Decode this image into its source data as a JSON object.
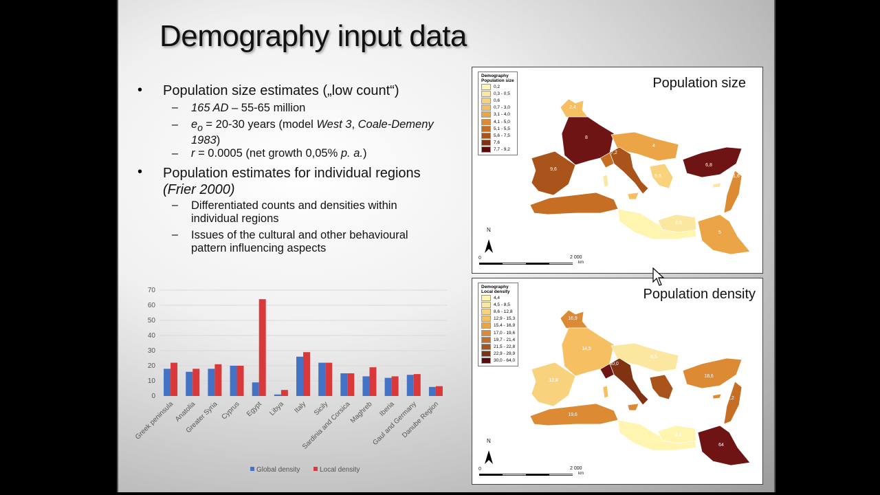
{
  "title": "Demography input data",
  "bullets": [
    {
      "text": "Population size estimates („low count“)",
      "subs": [
        {
          "html": "<i>165 AD</i> – 55-65 million"
        },
        {
          "html": "<i>e<sub>o</sub></i> = 20-30 years (model <i>West 3</i>, <i>Coale-Demeny</i><br><i>1983</i>)"
        },
        {
          "html": "<i>r</i> = 0.0005 (net growth 0,05% <i>p. a.</i>)"
        }
      ]
    },
    {
      "text": "Population estimates for individual regions",
      "text2": "(Frier 2000)",
      "subs": [
        {
          "html": "Differentiated counts and densities within<br>individual regions"
        },
        {
          "html": "Issues of the cultural and other behavioural<br>pattern influencing aspects"
        }
      ]
    }
  ],
  "map1": {
    "title": "Population size",
    "legend_title": "Demography",
    "legend_sub": "Population size",
    "classes": [
      "0,2",
      "0,3 - 0,5",
      "0,6",
      "0,7 - 3,0",
      "3,1 - 4,0",
      "4,1 - 5,0",
      "5,1 - 5,5",
      "5,6 - 7,5",
      "7,6",
      "7,7 - 9,2"
    ],
    "labels": [
      "2,4",
      "8",
      "7,2",
      "4",
      "6,8",
      "9,6",
      "0,2",
      "1,6",
      "5,5",
      "0,6",
      "5"
    ],
    "north": "N",
    "scale_start": "0",
    "scale_end": "2 000",
    "scale_unit": "km"
  },
  "map2": {
    "title": "Population density",
    "legend_title": "Demography",
    "legend_sub": "Local density",
    "classes": [
      "4,4",
      "4,5 - 8,5",
      "8,6 - 12,8",
      "12,9 - 15,3",
      "15,4 - 16,9",
      "17,0 - 19,6",
      "19,7 - 21,4",
      "21,5 - 22,8",
      "22,9 - 29,9",
      "30,0 - 64,0"
    ],
    "labels": [
      "16,9",
      "14,5",
      "12,8",
      "6,5",
      "30,0",
      "18,6",
      "22,2",
      "19,6",
      "4,4",
      "64"
    ],
    "north": "N",
    "scale_start": "0",
    "scale_end": "2 000",
    "scale_unit": "km"
  },
  "colors": {
    "ramp": [
      "#fff4b0",
      "#fce7a0",
      "#f9d27d",
      "#f5bf62",
      "#eba446",
      "#dc8a33",
      "#c66f24",
      "#a9541a",
      "#803312",
      "#5c0a0a"
    ],
    "global": "#4472c4",
    "local": "#d9393a"
  },
  "chart_data": {
    "type": "bar",
    "categories": [
      "Greek peninsula",
      "Anatolia",
      "Greater Syria",
      "Cyprus",
      "Egypt",
      "Libya",
      "Italy",
      "Sicily",
      "Sardinia and Corsica",
      "Maghreb",
      "Iberia",
      "Gaul and Germany",
      "Danube Region"
    ],
    "series": [
      {
        "name": "Global density",
        "values": [
          18,
          16,
          18,
          20,
          9,
          1,
          26,
          22,
          15,
          13,
          12,
          14,
          6
        ]
      },
      {
        "name": "Local density",
        "values": [
          22,
          18,
          21,
          20,
          64,
          4,
          29,
          22,
          15,
          19,
          13,
          14.5,
          6.5
        ]
      }
    ],
    "ylim": [
      0,
      70
    ],
    "yticks": [
      0,
      10,
      20,
      30,
      40,
      50,
      60,
      70
    ],
    "grid": true,
    "legend": "bottom"
  }
}
